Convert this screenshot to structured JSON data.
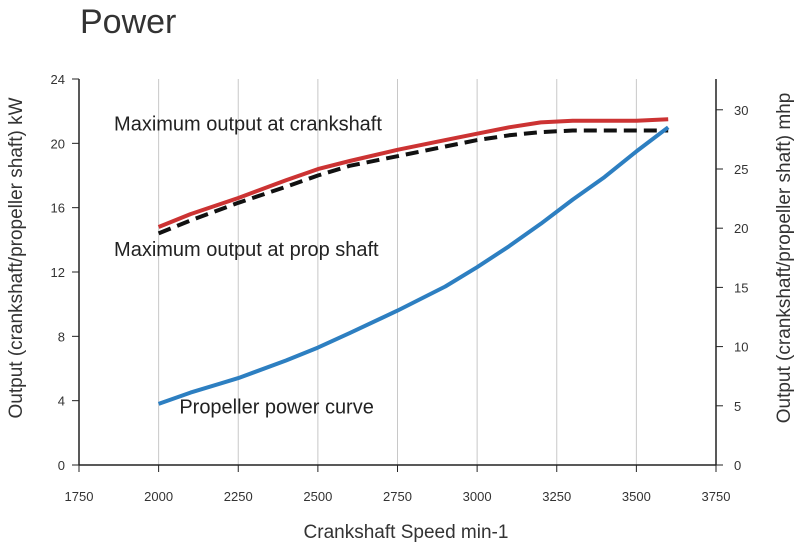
{
  "chart_data": {
    "type": "line",
    "title": "Power",
    "xlabel": "Crankshaft Speed min-1",
    "ylabel_left": "Output (crankshaft/propeller shaft) kW",
    "ylabel_right": "Output (crankshaft/propeller shaft) mhp",
    "xlim": [
      1750,
      3750
    ],
    "ylim_left": [
      0,
      24
    ],
    "ylim_right": [
      0,
      32.6
    ],
    "x_ticks": [
      1750,
      2000,
      2250,
      2500,
      2750,
      3000,
      3250,
      3500,
      3750
    ],
    "y_ticks_left": [
      0,
      4,
      8,
      12,
      16,
      20,
      24
    ],
    "y_ticks_right": [
      0,
      5,
      10,
      15,
      20,
      25,
      30
    ],
    "grid": "vertical",
    "series": [
      {
        "name": "Maximum output at crankshaft",
        "color": "#cc3333",
        "style": "solid",
        "x": [
          2000,
          2100,
          2250,
          2400,
          2500,
          2600,
          2750,
          2900,
          3000,
          3100,
          3200,
          3300,
          3400,
          3500,
          3600
        ],
        "y": [
          14.8,
          15.6,
          16.6,
          17.7,
          18.4,
          18.9,
          19.6,
          20.2,
          20.6,
          21.0,
          21.3,
          21.4,
          21.4,
          21.4,
          21.5
        ]
      },
      {
        "name": "Maximum output at prop shaft",
        "color": "#111111",
        "style": "dashed",
        "x": [
          2000,
          2100,
          2250,
          2400,
          2500,
          2600,
          2750,
          2900,
          3000,
          3100,
          3200,
          3300,
          3400,
          3500,
          3600
        ],
        "y": [
          14.4,
          15.2,
          16.3,
          17.3,
          18.0,
          18.6,
          19.2,
          19.8,
          20.2,
          20.5,
          20.7,
          20.8,
          20.8,
          20.8,
          20.8
        ]
      },
      {
        "name": "Propeller power curve",
        "color": "#2d7fc1",
        "style": "solid",
        "x": [
          2000,
          2100,
          2250,
          2400,
          2500,
          2600,
          2750,
          2900,
          3000,
          3100,
          3200,
          3300,
          3400,
          3500,
          3600
        ],
        "y": [
          3.8,
          4.5,
          5.4,
          6.5,
          7.3,
          8.2,
          9.6,
          11.1,
          12.3,
          13.6,
          15.0,
          16.5,
          17.9,
          19.5,
          21.0
        ]
      }
    ],
    "annotations": [
      {
        "text": "Maximum output at crankshaft",
        "x": 1860,
        "y": 20.8
      },
      {
        "text": "Maximum output at prop shaft",
        "x": 1860,
        "y": 13.0
      },
      {
        "text": "Propeller power curve",
        "x": 2065,
        "y": 3.2
      }
    ]
  }
}
